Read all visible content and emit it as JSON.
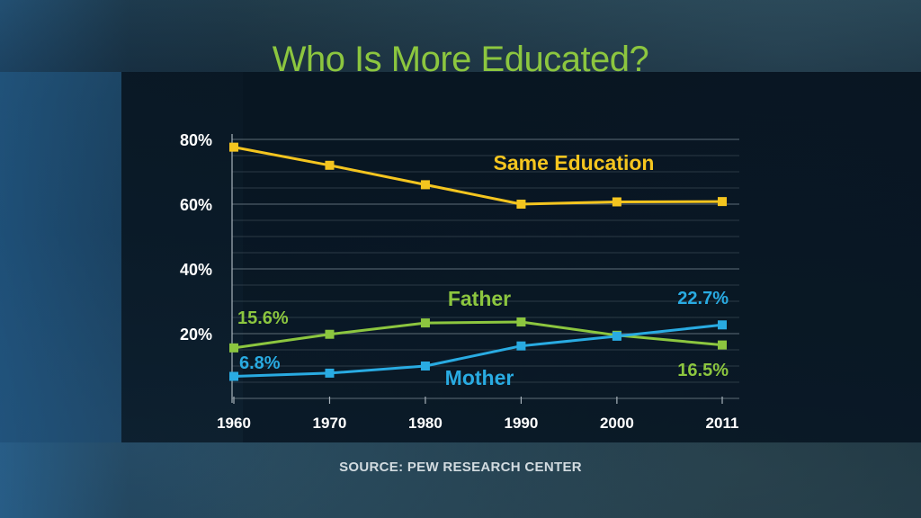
{
  "title": "Who Is More Educated?",
  "source": "SOURCE: PEW RESEARCH CENTER",
  "colors": {
    "title": "#8cc63f",
    "same_education": "#f4c51f",
    "father": "#8cc63f",
    "mother": "#29abe2",
    "grid": "#5e6d78"
  },
  "chart_data": {
    "type": "line",
    "title": "Who Is More Educated?",
    "xlabel": "",
    "ylabel": "",
    "x": [
      1960,
      1970,
      1980,
      1990,
      2000,
      2011
    ],
    "x_tick_labels": [
      "1960",
      "1970",
      "1980",
      "1990",
      "2000",
      "2011"
    ],
    "y_tick_labels": [
      "80%",
      "60%",
      "40%",
      "20%"
    ],
    "y_ticks": [
      80,
      60,
      40,
      20
    ],
    "ylim": [
      0,
      80
    ],
    "grid": true,
    "series": [
      {
        "name": "Same Education",
        "color": "#f4c51f",
        "values": [
          77.6,
          72,
          66,
          60,
          60.7,
          60.8
        ]
      },
      {
        "name": "Father",
        "color": "#8cc63f",
        "values": [
          15.6,
          19.8,
          23.3,
          23.6,
          19.5,
          16.5
        ]
      },
      {
        "name": "Mother",
        "color": "#29abe2",
        "values": [
          6.8,
          7.8,
          10,
          16.2,
          19.2,
          22.7
        ]
      }
    ],
    "annotations": [
      {
        "series": "Father",
        "text": "15.6%"
      },
      {
        "series": "Mother",
        "text": "6.8%"
      },
      {
        "series": "Mother",
        "text": "22.7%"
      },
      {
        "series": "Father",
        "text": "16.5%"
      }
    ]
  }
}
